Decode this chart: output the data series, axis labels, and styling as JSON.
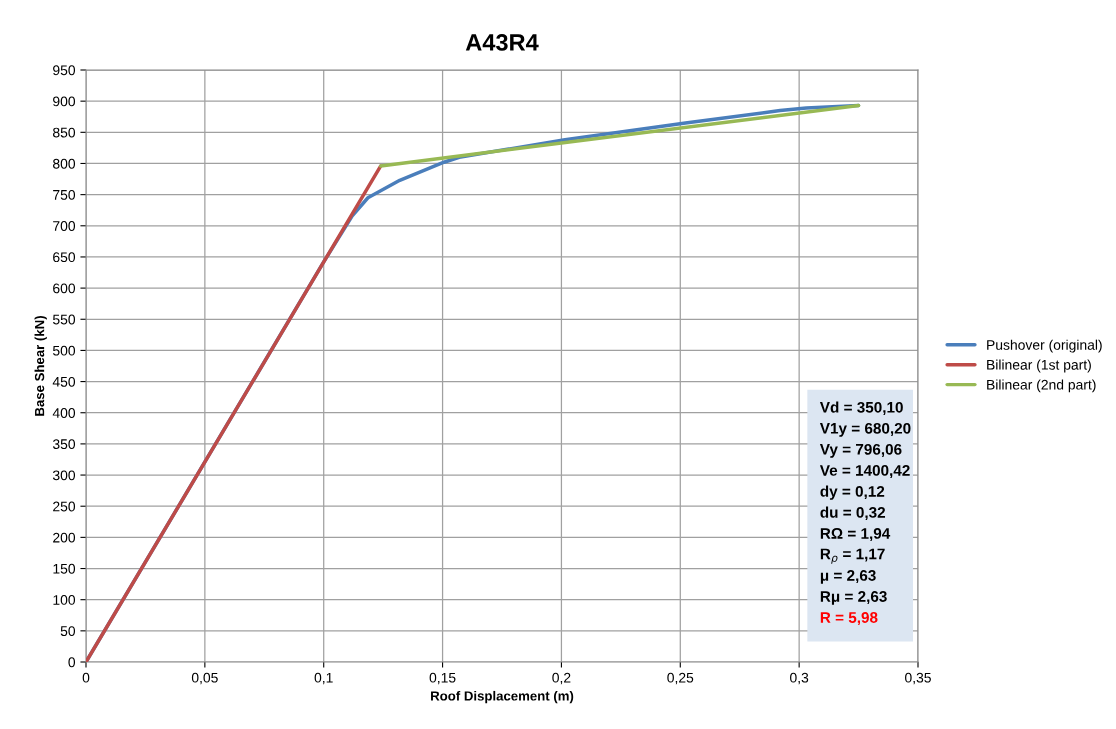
{
  "chart_data": {
    "type": "line",
    "title": "A43R4",
    "xlabel": "Roof Displacement (m)",
    "ylabel": "Base Shear (kN)",
    "xlim": [
      0,
      0.35
    ],
    "xticks": [
      0,
      {
        "value": 0.05,
        "label": "0,05"
      },
      {
        "value": 0.1,
        "label": "0,1"
      },
      {
        "value": 0.15,
        "label": "0,15"
      },
      {
        "value": 0.2,
        "label": "0,2"
      },
      {
        "value": 0.25,
        "label": "0,25"
      },
      {
        "value": 0.3,
        "label": "0,3"
      },
      {
        "value": 0.35,
        "label": "0,35"
      }
    ],
    "ylim": [
      0,
      950
    ],
    "yticks": [
      0,
      50,
      100,
      150,
      200,
      250,
      300,
      350,
      400,
      450,
      500,
      550,
      600,
      650,
      700,
      750,
      800,
      850,
      900,
      950
    ],
    "grid": true,
    "legend": "right",
    "marker": "none",
    "line_style": "solid",
    "series": [
      {
        "name": "Pushover (original)",
        "color": "#4a7ebb",
        "x": [
          0,
          0.05,
          0.1,
          0.112,
          0.1186,
          0.132,
          0.1506,
          0.157,
          0.2015,
          0.2522,
          0.292,
          0.303,
          0.325
        ],
        "values": [
          0,
          321,
          642,
          716,
          745,
          773,
          802,
          810,
          838,
          865,
          885,
          889,
          893
        ]
      },
      {
        "name": "Bilinear (1st part)",
        "color": "#be4b48",
        "x": [
          0,
          0.124
        ],
        "values": [
          0,
          796
        ]
      },
      {
        "name": "Bilinear (2nd part)",
        "color": "#98b954",
        "x": [
          0.124,
          0.325
        ],
        "values": [
          796,
          893
        ]
      }
    ],
    "annotations": [
      "Vd = 350,10",
      "V1y = 680,20",
      "Vy = 796,06",
      "Ve = 1400,42",
      "dy = 0,12",
      "du = 0,32",
      "RΩ = 1,94",
      "R$_{ρ}$ = 1,17",
      "μ = 2,63",
      "Rμ = 2,63",
      "R = 5,98"
    ]
  }
}
